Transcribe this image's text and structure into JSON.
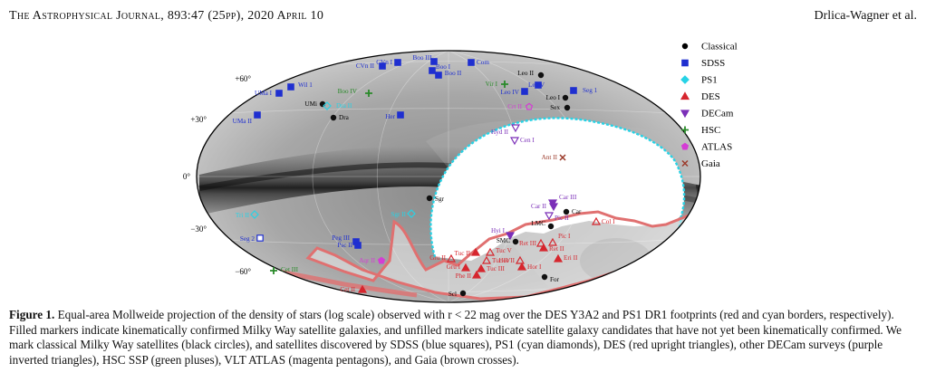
{
  "header": {
    "journal": "The Astrophysical Journal, 893:47 (25pp), 2020 April 10",
    "authors": "Drlica-Wagner et al."
  },
  "figure": {
    "grid_labels": [
      "+60°",
      "+30°",
      "0°",
      "−30°",
      "−60°"
    ],
    "legend": [
      {
        "label": "Classical",
        "symbol": "circle",
        "color": "#000000"
      },
      {
        "label": "SDSS",
        "symbol": "square",
        "color": "#1f2fd0"
      },
      {
        "label": "PS1",
        "symbol": "diamond",
        "color": "#27d3e6"
      },
      {
        "label": "DES",
        "symbol": "triangle",
        "color": "#d6262e"
      },
      {
        "label": "DECam",
        "symbol": "invtriangle",
        "color": "#7b2fb8"
      },
      {
        "label": "HSC",
        "symbol": "plus",
        "color": "#2a8a2a"
      },
      {
        "label": "ATLAS",
        "symbol": "pentagon",
        "color": "#d43dd4"
      },
      {
        "label": "Gaia",
        "symbol": "cross",
        "color": "#9c3b2b"
      }
    ],
    "colors": {
      "Classical": "#111111",
      "SDSS": "#1f2fd0",
      "PS1": "#27d3e6",
      "DES": "#d6262e",
      "DECam": "#7b2fb8",
      "HSC": "#2a8a2a",
      "ATLAS": "#d43dd4",
      "Gaia": "#9c3b2b"
    },
    "satellites": [
      {
        "name": "CVn II",
        "survey": "SDSS",
        "filled": true
      },
      {
        "name": "CVn I",
        "survey": "SDSS",
        "filled": true
      },
      {
        "name": "Boo III",
        "survey": "SDSS",
        "filled": true
      },
      {
        "name": "Boo I",
        "survey": "SDSS",
        "filled": true
      },
      {
        "name": "Boo II",
        "survey": "SDSS",
        "filled": true
      },
      {
        "name": "Com",
        "survey": "SDSS",
        "filled": true
      },
      {
        "name": "Leo II",
        "survey": "Classical",
        "filled": true
      },
      {
        "name": "Wil 1",
        "survey": "SDSS",
        "filled": true
      },
      {
        "name": "UMa I",
        "survey": "SDSS",
        "filled": true
      },
      {
        "name": "Boo IV",
        "survey": "HSC",
        "filled": false
      },
      {
        "name": "Vir I",
        "survey": "HSC",
        "filled": false
      },
      {
        "name": "Leo V",
        "survey": "SDSS",
        "filled": true
      },
      {
        "name": "Leo IV",
        "survey": "SDSS",
        "filled": true
      },
      {
        "name": "Seg 1",
        "survey": "SDSS",
        "filled": true
      },
      {
        "name": "Leo I",
        "survey": "Classical",
        "filled": true
      },
      {
        "name": "UMi",
        "survey": "Classical",
        "filled": true
      },
      {
        "name": "Dra II",
        "survey": "PS1",
        "filled": false
      },
      {
        "name": "Crt II",
        "survey": "ATLAS",
        "filled": false
      },
      {
        "name": "Sex",
        "survey": "Classical",
        "filled": true
      },
      {
        "name": "UMa II",
        "survey": "SDSS",
        "filled": true
      },
      {
        "name": "Dra",
        "survey": "Classical",
        "filled": true
      },
      {
        "name": "Her",
        "survey": "SDSS",
        "filled": true
      },
      {
        "name": "Hyd II",
        "survey": "DECam",
        "filled": false
      },
      {
        "name": "Cen I",
        "survey": "DECam",
        "filled": false
      },
      {
        "name": "Ant II",
        "survey": "Gaia",
        "filled": false
      },
      {
        "name": "Sgr",
        "survey": "Classical",
        "filled": true
      },
      {
        "name": "Car III",
        "survey": "DECam",
        "filled": true
      },
      {
        "name": "Car II",
        "survey": "DECam",
        "filled": true
      },
      {
        "name": "Car",
        "survey": "Classical",
        "filled": true
      },
      {
        "name": "Pic II",
        "survey": "DECam",
        "filled": false
      },
      {
        "name": "Col I",
        "survey": "DES",
        "filled": false
      },
      {
        "name": "Tri II",
        "survey": "PS1",
        "filled": false
      },
      {
        "name": "Sgr II",
        "survey": "PS1",
        "filled": false
      },
      {
        "name": "LMC",
        "survey": "Classical",
        "filled": true
      },
      {
        "name": "Hyi I",
        "survey": "DECam",
        "filled": true
      },
      {
        "name": "Seg 2",
        "survey": "SDSS",
        "filled": false
      },
      {
        "name": "Peg III",
        "survey": "SDSS",
        "filled": true
      },
      {
        "name": "Psc II",
        "survey": "SDSS",
        "filled": true
      },
      {
        "name": "SMC",
        "survey": "Classical",
        "filled": true
      },
      {
        "name": "Ret III",
        "survey": "DES",
        "filled": false
      },
      {
        "name": "Ret II",
        "survey": "DES",
        "filled": true
      },
      {
        "name": "Pic I",
        "survey": "DES",
        "filled": false
      },
      {
        "name": "Tuc II",
        "survey": "DES",
        "filled": true
      },
      {
        "name": "Tuc V",
        "survey": "DES",
        "filled": false
      },
      {
        "name": "Gru II",
        "survey": "DES",
        "filled": false
      },
      {
        "name": "Tuc IV",
        "survey": "DES",
        "filled": false
      },
      {
        "name": "Hor II",
        "survey": "DES",
        "filled": false
      },
      {
        "name": "Eri II",
        "survey": "DES",
        "filled": true
      },
      {
        "name": "Gru I",
        "survey": "DES",
        "filled": true
      },
      {
        "name": "Tuc III",
        "survey": "DES",
        "filled": true
      },
      {
        "name": "Hor I",
        "survey": "DES",
        "filled": true
      },
      {
        "name": "Phe II",
        "survey": "DES",
        "filled": true
      },
      {
        "name": "Aqr II",
        "survey": "ATLAS",
        "filled": true
      },
      {
        "name": "Cet III",
        "survey": "HSC",
        "filled": false
      },
      {
        "name": "Cet II",
        "survey": "DES",
        "filled": true
      },
      {
        "name": "For",
        "survey": "Classical",
        "filled": true
      },
      {
        "name": "Scl",
        "survey": "Classical",
        "filled": true
      }
    ]
  },
  "caption": {
    "label": "Figure 1.",
    "text": "Equal-area Mollweide projection of the density of stars (log scale) observed with r < 22 mag over the DES Y3A2 and PS1 DR1 footprints (red and cyan borders, respectively). Filled markers indicate kinematically confirmed Milky Way satellite galaxies, and unfilled markers indicate satellite galaxy candidates that have not yet been kinematically confirmed. We mark classical Milky Way satellites (black circles), and satellites discovered by SDSS (blue squares), PS1 (cyan diamonds), DES (red upright triangles), other DECam surveys (purple inverted triangles), HSC SSP (green pluses), VLT ATLAS (magenta pentagons), and Gaia (brown crosses)."
  }
}
